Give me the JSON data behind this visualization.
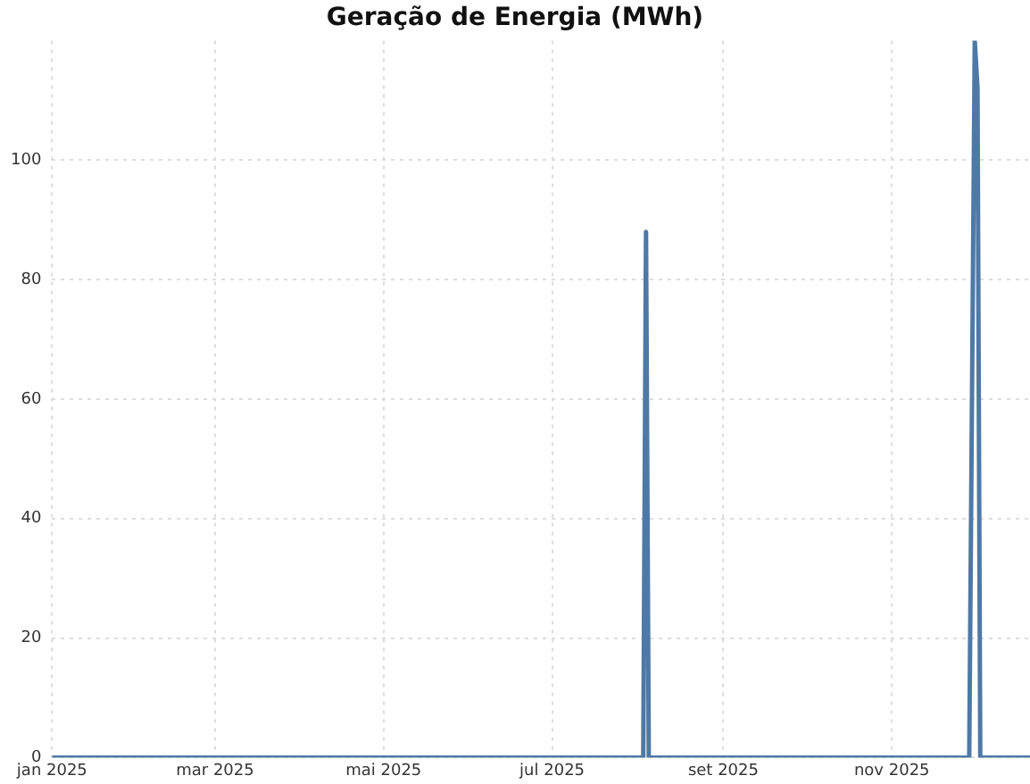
{
  "chart_data": {
    "type": "line",
    "title": "Geração de Energia (MWh)",
    "xlim": [
      "2025-01-01",
      "2025-12-21"
    ],
    "xticks": [
      {
        "value": "2025-01-01",
        "label": "jan 2025"
      },
      {
        "value": "2025-03-01",
        "label": "mar 2025"
      },
      {
        "value": "2025-05-01",
        "label": "mai 2025"
      },
      {
        "value": "2025-07-01",
        "label": "jul 2025"
      },
      {
        "value": "2025-09-01",
        "label": "set 2025"
      },
      {
        "value": "2025-11-01",
        "label": "nov 2025"
      }
    ],
    "ylim": [
      0,
      120
    ],
    "yticks": [
      0,
      20,
      40,
      60,
      80,
      100
    ],
    "grid": true,
    "legend": false,
    "marker": "none",
    "line_style": "solid",
    "series": [
      {
        "color": "#4e79a7",
        "x": [
          "2025-01-01",
          "2025-08-03",
          "2025-08-04",
          "2025-08-05",
          "2025-11-29",
          "2025-12-01",
          "2025-12-02",
          "2025-12-03",
          "2025-12-21"
        ],
        "values": [
          0,
          0,
          88,
          0,
          0,
          120,
          112,
          0,
          0
        ]
      }
    ]
  }
}
